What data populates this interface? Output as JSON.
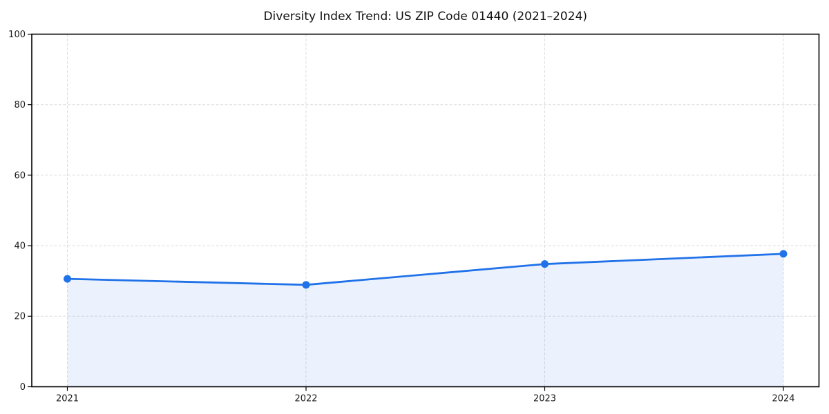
{
  "page": {
    "background_color": "#ffffff"
  },
  "chart_data": {
    "type": "area",
    "title": "Diversity Index Trend: US ZIP Code 01440 (2021–2024)",
    "categories": [
      "2021",
      "2022",
      "2023",
      "2024"
    ],
    "values": [
      30.6,
      28.9,
      34.8,
      37.7
    ],
    "series_name": "Diversity Index",
    "xlabel": "",
    "ylabel": "",
    "ylim": [
      0,
      100
    ],
    "yticks": [
      0,
      20,
      40,
      60,
      80,
      100
    ],
    "grid": true,
    "grid_style": "dashed",
    "legend": false,
    "markers": true,
    "colors": {
      "line": "#2172e8",
      "marker": "#2172e8",
      "fill": "#2172e8",
      "fill_opacity": 0.09,
      "grid": "#dcdcdc",
      "spine": "#000000",
      "text": "#1a1a1a",
      "title": "#111111",
      "background": "#ffffff"
    }
  }
}
